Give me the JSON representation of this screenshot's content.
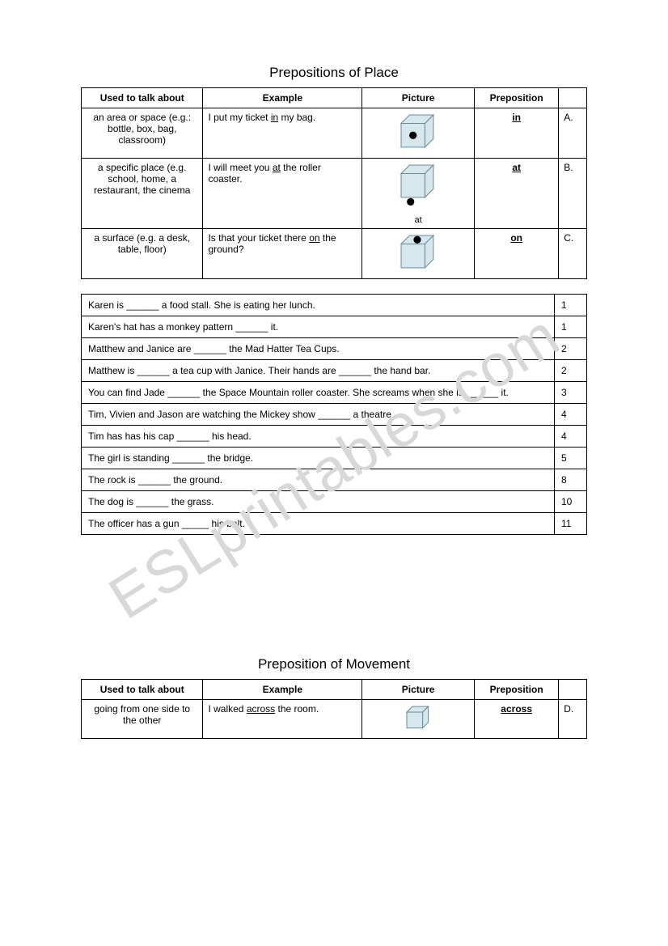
{
  "watermark": "ESLprintables.com",
  "section1": {
    "title": "Prepositions of Place",
    "headers": [
      "Used to talk about",
      "Example",
      "Picture",
      "Preposition",
      ""
    ],
    "rows": [
      {
        "used": "an area or space (e.g.: bottle, box, bag, classroom)",
        "example_pre": "I put my ticket ",
        "example_u": "in",
        "example_post": " my bag.",
        "pic_label": "",
        "prep": "in",
        "letter": "A.",
        "dot": "inside"
      },
      {
        "used": "a specific place (e.g. school, home, a restaurant, the cinema",
        "example_pre": "I will meet you ",
        "example_u": "at",
        "example_post": " the roller coaster.",
        "pic_label": "at",
        "prep": "at",
        "letter": "B.",
        "dot": "front"
      },
      {
        "used": "a surface (e.g. a desk, table, floor)",
        "example_pre": "Is that your ticket there ",
        "example_u": "on",
        "example_post": " the ground?",
        "pic_label": "",
        "prep": "on",
        "letter": "C.",
        "dot": "top"
      }
    ]
  },
  "exercises1": [
    {
      "text": "Karen is ______ a food stall.  She is eating her lunch.",
      "num": "1"
    },
    {
      "text": "Karen's hat has a monkey pattern ______ it.",
      "num": "1"
    },
    {
      "text": "Matthew and Janice are ______ the Mad Hatter Tea Cups.",
      "num": "2"
    },
    {
      "text": "Matthew is ______ a tea cup with Janice.  Their hands are ______ the hand bar.",
      "num": "2"
    },
    {
      "text": "You can find Jade ______ the Space Mountain roller coaster.  She screams when she is ______ it.",
      "num": "3"
    },
    {
      "text": "Tim, Vivien and Jason are watching the Mickey show ______ a theatre.",
      "num": "4"
    },
    {
      "text": "Tim has has his cap ______ his head.",
      "num": "4"
    },
    {
      "text": "The girl is standing ______ the bridge.",
      "num": "5"
    },
    {
      "text": "The rock is ______ the ground.",
      "num": "8"
    },
    {
      "text": "The dog is ______ the grass.",
      "num": "10"
    },
    {
      "text": "The officer has a gun _____ his belt.",
      "num": "11"
    }
  ],
  "section2": {
    "title": "Preposition of Movement",
    "headers": [
      "Used to talk about",
      "Example",
      "Picture",
      "Preposition",
      ""
    ],
    "rows": [
      {
        "used": "going from one side to the other",
        "example_pre": "I walked ",
        "example_u": "across",
        "example_post": " the room.",
        "pic_label": "",
        "prep": "across",
        "letter": "D.",
        "dot": "none"
      }
    ]
  },
  "cube": {
    "fill": "#d6e8ed",
    "stroke": "#6a8a94",
    "dot": "#000000"
  }
}
